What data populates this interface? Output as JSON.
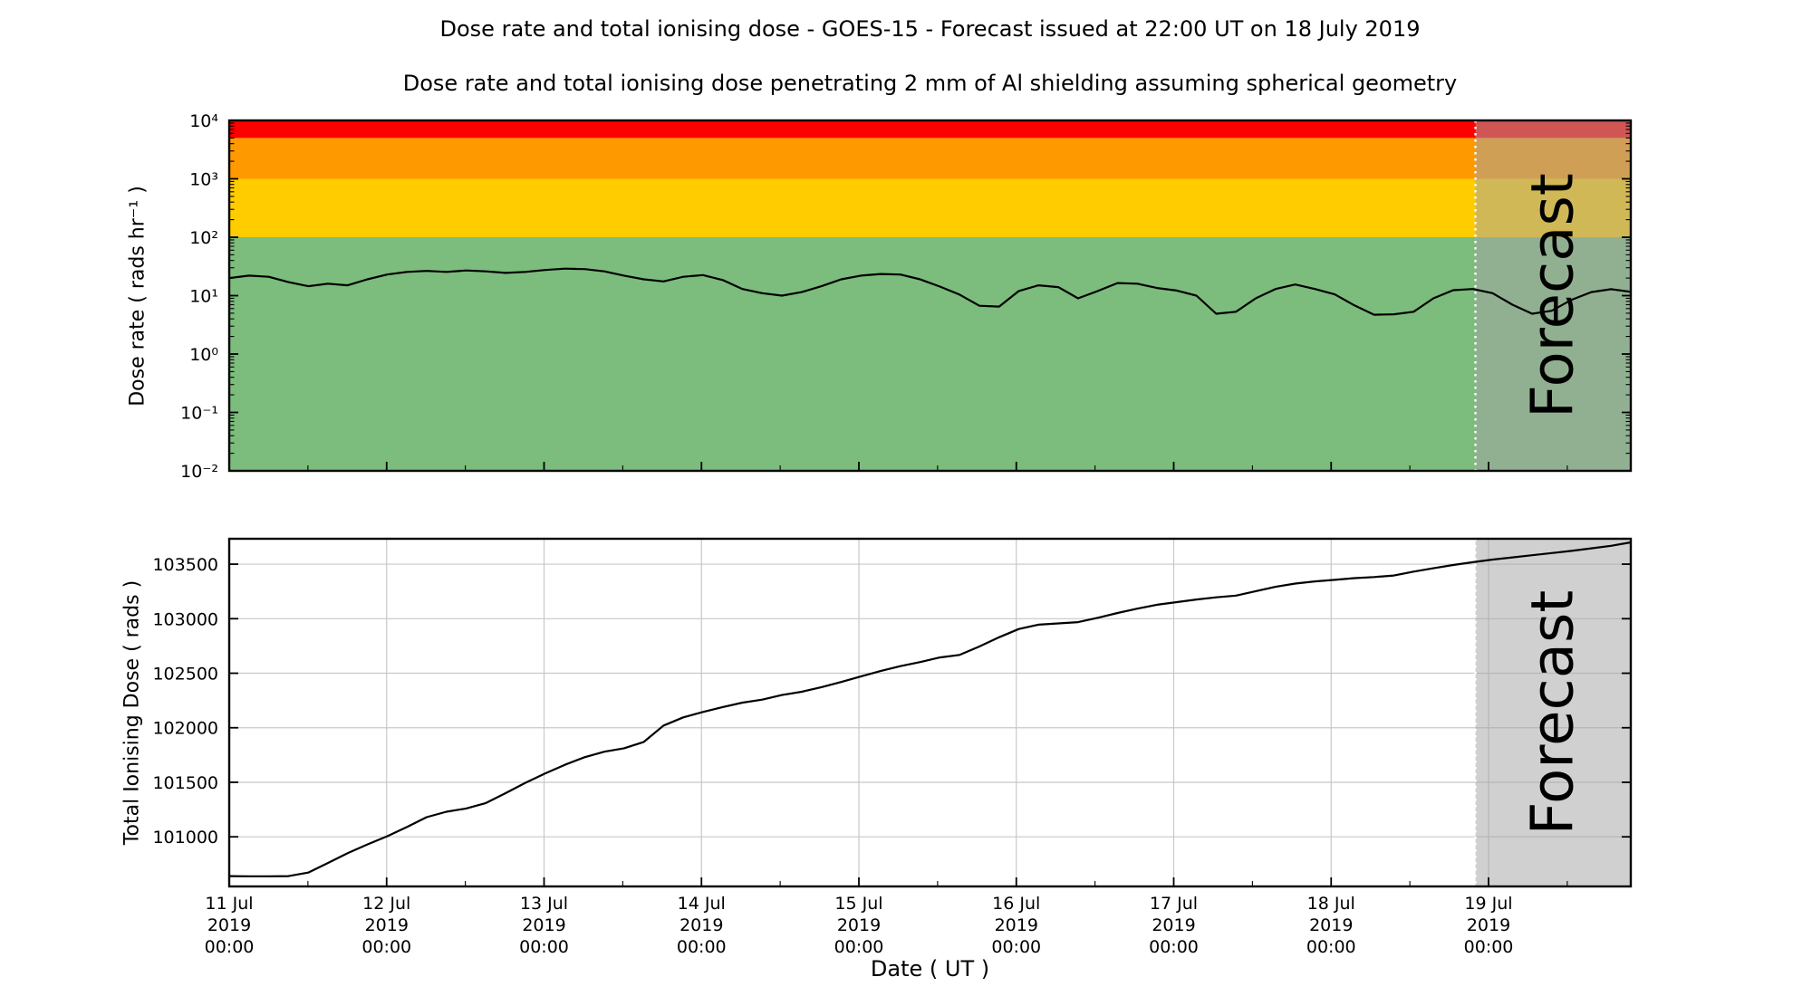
{
  "title": "Dose rate and total ionising dose - GOES-15 - Forecast issued at 22:00 UT on 18 July 2019",
  "subtitle": "Dose rate and total ionising dose penetrating 2 mm of Al shielding assuming spherical geometry",
  "forecast": {
    "label": "Forecast",
    "start_day": 7.9167,
    "start_time": "18 Jul 2019 22:00",
    "overlay_color": "rgba(164,164,164,0.52)",
    "divider_color": "#ffffff",
    "text_color": "rgba(105,105,105,0.45)"
  },
  "colors": {
    "red_band": "#ff0000",
    "orange_band": "#ff9900",
    "yellow_band": "#ffcc00",
    "green_band": "#7cbc7c",
    "grid": "#c8c8c8",
    "line": "#000000"
  },
  "x_axis": {
    "label": "Date ( UT )",
    "total_days": 8.9036,
    "tick_days": [
      0,
      1,
      2,
      3,
      4,
      5,
      6,
      7,
      8
    ],
    "tick_labels": [
      [
        "11 Jul",
        "2019",
        "00:00"
      ],
      [
        "12 Jul",
        "2019",
        "00:00"
      ],
      [
        "13 Jul",
        "2019",
        "00:00"
      ],
      [
        "14 Jul",
        "2019",
        "00:00"
      ],
      [
        "15 Jul",
        "2019",
        "00:00"
      ],
      [
        "16 Jul",
        "2019",
        "00:00"
      ],
      [
        "17 Jul",
        "2019",
        "00:00"
      ],
      [
        "18 Jul",
        "2019",
        "00:00"
      ],
      [
        "19 Jul",
        "2019",
        "00:00"
      ]
    ],
    "minor_tick_interval_days": 0.5
  },
  "chart_data": [
    {
      "type": "line",
      "panel": "dose_rate",
      "ylabel": "Dose rate ( rads hr⁻¹ )",
      "yscale": "log",
      "ylim": [
        0.01,
        10000
      ],
      "ytick_labels": [
        "10⁴",
        "10³",
        "10²",
        "10¹",
        "10⁰",
        "10⁻¹",
        "10⁻²"
      ],
      "bands": [
        {
          "from": 5000,
          "to": 10000,
          "color": "#ff0000"
        },
        {
          "from": 1000,
          "to": 5000,
          "color": "#ff9900"
        },
        {
          "from": 100,
          "to": 1000,
          "color": "#ffcc00"
        },
        {
          "from": 0.01,
          "to": 100,
          "color": "#7cbc7c"
        }
      ],
      "grid": false,
      "series": [
        {
          "name": "dose-rate",
          "color": "#000000",
          "values": [
            20,
            22,
            21,
            17,
            14.5,
            16,
            15,
            19,
            23,
            25.5,
            26.5,
            25.5,
            27,
            26,
            24.5,
            25.5,
            27.5,
            29,
            28.5,
            26,
            22,
            19,
            17.5,
            21,
            22.5,
            18.5,
            13,
            11,
            10,
            11.5,
            14.5,
            19,
            22,
            23.5,
            23,
            19,
            14.3,
            10.4,
            6.7,
            6.5,
            12,
            15,
            14,
            9,
            12,
            16.4,
            16,
            13.5,
            12.2,
            10,
            4.9,
            5.3,
            9,
            13,
            15.5,
            13,
            10.5,
            6.8,
            4.7,
            4.8,
            5.3,
            9,
            12.4,
            13,
            11,
            7,
            4.9,
            5.5,
            8.5,
            11.5,
            12.9,
            11.6
          ]
        }
      ]
    },
    {
      "type": "line",
      "panel": "total_dose",
      "ylabel": "Total Ionising Dose ( rads )",
      "yscale": "linear",
      "ylim": [
        100545,
        103733
      ],
      "yticks": [
        101000,
        101500,
        102000,
        102500,
        103000,
        103500
      ],
      "grid": true,
      "series": [
        {
          "name": "total-ionising-dose",
          "color": "#000000",
          "values": [
            100640,
            100638,
            100638,
            100640,
            100672,
            100760,
            100850,
            100930,
            101005,
            101090,
            101180,
            101230,
            101260,
            101310,
            101400,
            101495,
            101580,
            101660,
            101730,
            101780,
            101812,
            101870,
            102020,
            102095,
            102145,
            102190,
            102230,
            102258,
            102300,
            102330,
            102372,
            102420,
            102470,
            102520,
            102565,
            102602,
            102645,
            102668,
            102745,
            102830,
            102905,
            102945,
            102957,
            102968,
            103008,
            103052,
            103092,
            103128,
            103152,
            103176,
            103196,
            103212,
            103252,
            103292,
            103322,
            103342,
            103356,
            103372,
            103382,
            103396,
            103432,
            103462,
            103492,
            103518,
            103542,
            103562,
            103582,
            103602,
            103622,
            103645,
            103668,
            103700
          ]
        }
      ]
    }
  ]
}
